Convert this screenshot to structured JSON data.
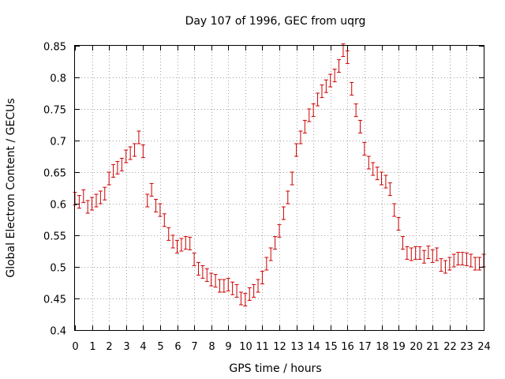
{
  "chart_data": {
    "type": "scatter",
    "title": "Day 107 of 1996, GEC from uqrg",
    "xlabel": "GPS time / hours",
    "ylabel": "Global Electron Content / GECUs",
    "xlim": [
      0,
      24
    ],
    "ylim": [
      0.4,
      0.85
    ],
    "x_ticks": [
      0,
      1,
      2,
      3,
      4,
      5,
      6,
      7,
      8,
      9,
      10,
      11,
      12,
      13,
      14,
      15,
      16,
      17,
      18,
      19,
      20,
      21,
      22,
      23,
      24
    ],
    "y_ticks": [
      "0.4",
      "0.45",
      "0.5",
      "0.55",
      "0.6",
      "0.65",
      "0.7",
      "0.75",
      "0.8",
      "0.85"
    ],
    "grid": true,
    "legend": "none",
    "marker": "error-bar",
    "series_color": "#cc0000",
    "error": 0.01,
    "series": [
      {
        "x": [
          0.0,
          0.25,
          0.5,
          0.75,
          1.0,
          1.25,
          1.5,
          1.75,
          2.0,
          2.25,
          2.5,
          2.75,
          3.0,
          3.25,
          3.5,
          3.75,
          4.0,
          4.25,
          4.5,
          4.75,
          5.0,
          5.25,
          5.5,
          5.75,
          6.0,
          6.25,
          6.5,
          6.75,
          7.0,
          7.25,
          7.5,
          7.75,
          8.0,
          8.25,
          8.5,
          8.75,
          9.0,
          9.25,
          9.5,
          9.75,
          10.0,
          10.25,
          10.5,
          10.75,
          11.0,
          11.25,
          11.5,
          11.75,
          12.0,
          12.25,
          12.5,
          12.75,
          13.0,
          13.25,
          13.5,
          13.75,
          14.0,
          14.25,
          14.5,
          14.75,
          15.0,
          15.25,
          15.5,
          15.75,
          16.0,
          16.25,
          16.5,
          16.75,
          17.0,
          17.25,
          17.5,
          17.75,
          18.0,
          18.25,
          18.5,
          18.75,
          19.0,
          19.25,
          19.5,
          19.75,
          20.0,
          20.25,
          20.5,
          20.75,
          21.0,
          21.25,
          21.5,
          21.75,
          22.0,
          22.25,
          22.5,
          22.75,
          23.0,
          23.25,
          23.5,
          23.75,
          24.0
        ],
        "y": [
          0.608,
          0.603,
          0.612,
          0.595,
          0.6,
          0.605,
          0.61,
          0.616,
          0.64,
          0.652,
          0.657,
          0.662,
          0.675,
          0.68,
          0.685,
          0.705,
          0.683,
          0.605,
          0.622,
          0.597,
          0.59,
          0.574,
          0.552,
          0.54,
          0.532,
          0.535,
          0.538,
          0.537,
          0.512,
          0.497,
          0.492,
          0.487,
          0.48,
          0.478,
          0.47,
          0.47,
          0.472,
          0.466,
          0.462,
          0.45,
          0.448,
          0.457,
          0.462,
          0.47,
          0.483,
          0.505,
          0.52,
          0.538,
          0.557,
          0.585,
          0.61,
          0.64,
          0.685,
          0.705,
          0.722,
          0.74,
          0.748,
          0.765,
          0.778,
          0.786,
          0.795,
          0.803,
          0.818,
          0.843,
          0.832,
          0.782,
          0.748,
          0.722,
          0.687,
          0.665,
          0.655,
          0.648,
          0.64,
          0.635,
          0.623,
          0.59,
          0.568,
          0.538,
          0.522,
          0.52,
          0.522,
          0.522,
          0.516,
          0.523,
          0.517,
          0.52,
          0.503,
          0.5,
          0.505,
          0.51,
          0.513,
          0.513,
          0.512,
          0.51,
          0.505,
          0.505,
          0.51
        ]
      }
    ]
  }
}
